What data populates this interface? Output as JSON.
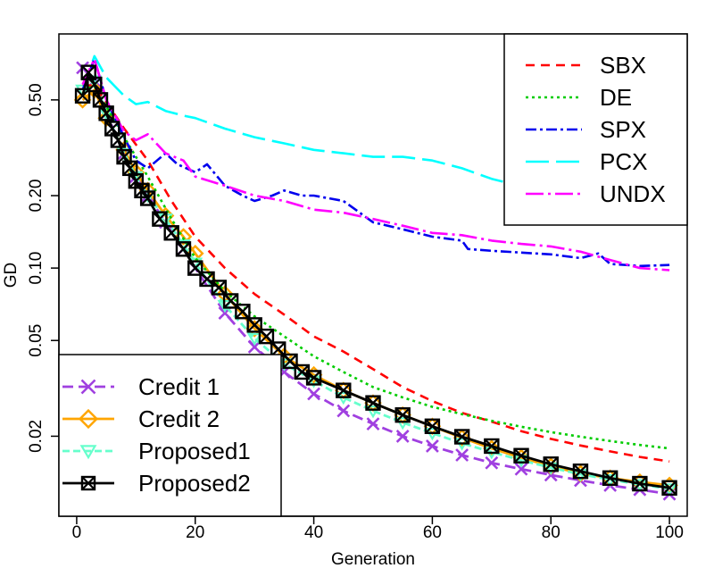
{
  "chart_data": {
    "type": "line",
    "xlabel": "Generation",
    "ylabel": "GD",
    "xlim": [
      -3,
      103
    ],
    "ylim": [
      0.0093,
      0.94
    ],
    "y_scale": "log",
    "grid": false,
    "x_ticks": [
      {
        "value": 0,
        "label": "0"
      },
      {
        "value": 20,
        "label": "20"
      },
      {
        "value": 40,
        "label": "40"
      },
      {
        "value": 60,
        "label": "60"
      },
      {
        "value": 80,
        "label": "80"
      },
      {
        "value": 100,
        "label": "100"
      }
    ],
    "y_ticks": [
      {
        "value": 0.02,
        "label": "0.02"
      },
      {
        "value": 0.05,
        "label": "0.05"
      },
      {
        "value": 0.1,
        "label": "0.10"
      },
      {
        "value": 0.2,
        "label": "0.20"
      },
      {
        "value": 0.5,
        "label": "0.50"
      }
    ],
    "legend_top": {
      "placement": "top-right",
      "entries": [
        "SBX",
        "DE",
        "SPX",
        "PCX",
        "UNDX"
      ]
    },
    "legend_bottom": {
      "placement": "bottom-left",
      "entries": [
        "Credit 1",
        "Credit 2",
        "Proposed1",
        "Proposed2"
      ]
    },
    "series": [
      {
        "name": "SBX",
        "color": "#ff0000",
        "dash": "10,7",
        "marker": "none",
        "x": [
          1,
          3,
          5,
          8,
          12,
          16,
          20,
          25,
          30,
          35,
          40,
          45,
          50,
          55,
          60,
          65,
          70,
          75,
          80,
          85,
          90,
          95,
          100
        ],
        "y": [
          0.58,
          0.57,
          0.49,
          0.38,
          0.28,
          0.19,
          0.135,
          0.1,
          0.078,
          0.064,
          0.052,
          0.045,
          0.038,
          0.032,
          0.028,
          0.025,
          0.023,
          0.021,
          0.0195,
          0.0183,
          0.0173,
          0.0164,
          0.0157
        ]
      },
      {
        "name": "DE",
        "color": "#00cc00",
        "dash": "3,4",
        "marker": "none",
        "x": [
          1,
          3,
          5,
          8,
          12,
          16,
          20,
          25,
          30,
          35,
          40,
          45,
          50,
          55,
          60,
          65,
          70,
          75,
          80,
          85,
          90,
          95,
          100
        ],
        "y": [
          0.55,
          0.57,
          0.47,
          0.35,
          0.24,
          0.16,
          0.11,
          0.08,
          0.063,
          0.052,
          0.043,
          0.037,
          0.032,
          0.029,
          0.0265,
          0.0247,
          0.0232,
          0.0219,
          0.0208,
          0.0199,
          0.0191,
          0.0184,
          0.0178
        ]
      },
      {
        "name": "SPX",
        "color": "#0000ee",
        "dash": "12,4,3,4",
        "marker": "none",
        "x": [
          1,
          3,
          5,
          8,
          10,
          12,
          15,
          17,
          20,
          22,
          25,
          28,
          30,
          33,
          35,
          38,
          40,
          45,
          50,
          55,
          60,
          65,
          66,
          70,
          75,
          80,
          85,
          88,
          90,
          95,
          100
        ],
        "y": [
          0.55,
          0.74,
          0.5,
          0.35,
          0.28,
          0.26,
          0.3,
          0.27,
          0.25,
          0.27,
          0.22,
          0.2,
          0.19,
          0.2,
          0.21,
          0.2,
          0.2,
          0.19,
          0.155,
          0.145,
          0.135,
          0.13,
          0.12,
          0.118,
          0.116,
          0.114,
          0.11,
          0.115,
          0.104,
          0.102,
          0.103
        ]
      },
      {
        "name": "PCX",
        "color": "#00ffff",
        "dash": "26,8",
        "marker": "none",
        "x": [
          1,
          3,
          5,
          8,
          10,
          12,
          15,
          18,
          20,
          25,
          30,
          35,
          40,
          45,
          50,
          55,
          60,
          65,
          70,
          73
        ],
        "y": [
          0.55,
          0.76,
          0.62,
          0.52,
          0.48,
          0.49,
          0.45,
          0.43,
          0.42,
          0.38,
          0.35,
          0.33,
          0.31,
          0.3,
          0.29,
          0.29,
          0.28,
          0.26,
          0.235,
          0.225
        ]
      },
      {
        "name": "UNDX",
        "color": "#ff00ff",
        "dash": "20,5,3,5",
        "marker": "none",
        "x": [
          1,
          3,
          5,
          8,
          10,
          12,
          15,
          18,
          20,
          25,
          30,
          35,
          40,
          45,
          50,
          55,
          60,
          65,
          70,
          75,
          80,
          85,
          90,
          95,
          100
        ],
        "y": [
          0.58,
          0.74,
          0.5,
          0.37,
          0.34,
          0.36,
          0.3,
          0.28,
          0.24,
          0.22,
          0.2,
          0.19,
          0.175,
          0.17,
          0.16,
          0.15,
          0.14,
          0.137,
          0.13,
          0.126,
          0.123,
          0.117,
          0.108,
          0.1,
          0.098
        ]
      },
      {
        "name": "Credit 1",
        "color": "#a040e0",
        "dash": "12,6",
        "marker": "x",
        "x": [
          1,
          3,
          5,
          8,
          10,
          12,
          15,
          18,
          20,
          25,
          30,
          35,
          40,
          45,
          50,
          55,
          60,
          65,
          70,
          75,
          80,
          85,
          90,
          95,
          100
        ],
        "y": [
          0.68,
          0.6,
          0.44,
          0.3,
          0.24,
          0.2,
          0.155,
          0.12,
          0.1,
          0.065,
          0.047,
          0.037,
          0.03,
          0.0255,
          0.0225,
          0.02,
          0.0182,
          0.0167,
          0.0155,
          0.0146,
          0.0138,
          0.0131,
          0.0125,
          0.012,
          0.0115
        ]
      },
      {
        "name": "Credit 2",
        "color": "#ffa500",
        "dash": "",
        "marker": "diamond",
        "x": [
          1,
          3,
          5,
          8,
          10,
          12,
          15,
          18,
          20,
          25,
          30,
          35,
          40,
          45,
          50,
          55,
          60,
          65,
          70,
          75,
          80,
          85,
          90,
          95,
          100
        ],
        "y": [
          0.5,
          0.55,
          0.42,
          0.31,
          0.25,
          0.21,
          0.165,
          0.135,
          0.115,
          0.078,
          0.056,
          0.043,
          0.036,
          0.031,
          0.0275,
          0.0245,
          0.022,
          0.0197,
          0.0178,
          0.0163,
          0.015,
          0.014,
          0.0134,
          0.0129,
          0.0125
        ]
      },
      {
        "name": "Proposed1",
        "color": "#66ffcc",
        "dash": "8,4",
        "marker": "triangle-down",
        "x": [
          1,
          3,
          5,
          8,
          10,
          12,
          15,
          18,
          20,
          25,
          30,
          35,
          40,
          45,
          50,
          55,
          60,
          65,
          70,
          75,
          80,
          85,
          90,
          95,
          100
        ],
        "y": [
          0.55,
          0.6,
          0.44,
          0.3,
          0.24,
          0.2,
          0.16,
          0.125,
          0.105,
          0.07,
          0.051,
          0.04,
          0.034,
          0.029,
          0.0255,
          0.0228,
          0.0206,
          0.0187,
          0.0172,
          0.0159,
          0.0148,
          0.0139,
          0.0132,
          0.0126,
          0.0121
        ]
      },
      {
        "name": "Proposed2",
        "color": "#000000",
        "dash": "",
        "marker": "boxed-x",
        "x": [
          1,
          2,
          3,
          4,
          5,
          6,
          7,
          8,
          9,
          10,
          11,
          12,
          14,
          16,
          18,
          20,
          22,
          24,
          26,
          28,
          30,
          32,
          34,
          36,
          38,
          40,
          45,
          50,
          55,
          60,
          65,
          70,
          75,
          80,
          85,
          90,
          95,
          100
        ],
        "y": [
          0.52,
          0.65,
          0.58,
          0.5,
          0.44,
          0.38,
          0.34,
          0.29,
          0.26,
          0.23,
          0.21,
          0.195,
          0.16,
          0.14,
          0.12,
          0.1,
          0.09,
          0.083,
          0.073,
          0.066,
          0.058,
          0.052,
          0.046,
          0.041,
          0.037,
          0.035,
          0.031,
          0.0275,
          0.0245,
          0.022,
          0.0199,
          0.0182,
          0.0166,
          0.0153,
          0.0143,
          0.0134,
          0.0127,
          0.0122
        ]
      }
    ]
  }
}
